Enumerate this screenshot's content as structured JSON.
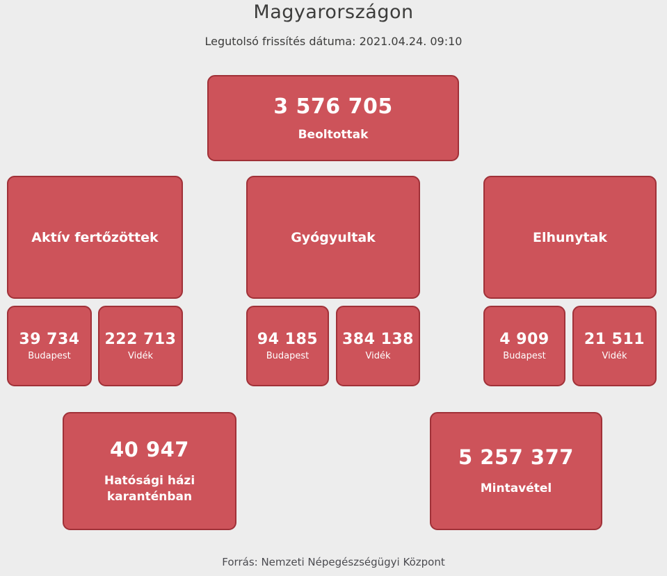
{
  "page": {
    "title": "Magyarországon",
    "subtitle": "Legutolsó frissítés dátuma: 2021.04.24. 09:10",
    "source": "Forrás: Nemzeti Népegészségügyi Központ"
  },
  "colors": {
    "background": "#ededed",
    "box_fill": "#cd535a",
    "box_border": "#a03138",
    "box_text": "#ffffff",
    "heading_text": "#3c3c3b",
    "source_text": "#4b4b50"
  },
  "vaccinated": {
    "value": "3 576 705",
    "label": "Beoltottak"
  },
  "categories": [
    {
      "label": "Aktív fertőzöttek",
      "budapest": {
        "value": "39 734",
        "label": "Budapest"
      },
      "videk": {
        "value": "222 713",
        "label": "Vidék"
      }
    },
    {
      "label": "Gyógyultak",
      "budapest": {
        "value": "94 185",
        "label": "Budapest"
      },
      "videk": {
        "value": "384 138",
        "label": "Vidék"
      }
    },
    {
      "label": "Elhunytak",
      "budapest": {
        "value": "4 909",
        "label": "Budapest"
      },
      "videk": {
        "value": "21 511",
        "label": "Vidék"
      }
    }
  ],
  "quarantine": {
    "value": "40 947",
    "label": "Hatósági házi karanténban"
  },
  "sampling": {
    "value": "5 257 377",
    "label": "Mintavétel"
  }
}
